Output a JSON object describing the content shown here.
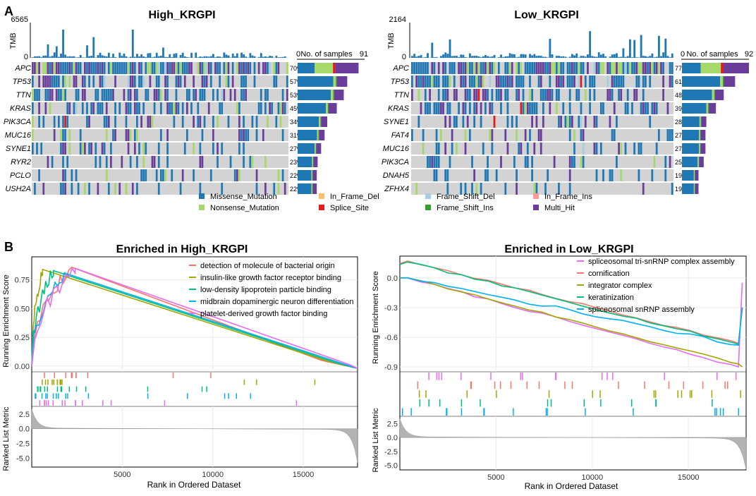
{
  "panel_a_label": "A",
  "panel_b_label": "B",
  "colors": {
    "missense": "#1f78b4",
    "nonsense": "#a6d96a",
    "in_frame_del": "#fdbf6f",
    "splice": "#e31a1c",
    "frame_shift_del": "#a6cee3",
    "frame_shift_ins": "#33a02c",
    "in_frame_ins": "#fb9a99",
    "multi_hit": "#6a3d9a",
    "grid": "#d3d3d3",
    "gsea1": "#f8766d",
    "gsea2": "#a3a500",
    "gsea3": "#00bf7d",
    "gsea4": "#00b0f6",
    "gsea5": "#e76bf3"
  },
  "legend": {
    "items": [
      {
        "label": "Missense_Mutation",
        "key": "missense"
      },
      {
        "label": "Nonsense_Mutation",
        "key": "nonsense"
      },
      {
        "label": "In_Frame_Del",
        "key": "in_frame_del"
      },
      {
        "label": "Splice_Site",
        "key": "splice"
      },
      {
        "label": "Frame_Shift_Del",
        "key": "frame_shift_del"
      },
      {
        "label": "Frame_Shift_Ins",
        "key": "frame_shift_ins"
      },
      {
        "label": "In_Frame_Ins",
        "key": "in_frame_ins"
      },
      {
        "label": "Multi_Hit",
        "key": "multi_hit"
      }
    ]
  },
  "chart_data": [
    {
      "type": "oncoplot",
      "title": "High_KRGPI",
      "tmb_label": "TMB",
      "tmb_max": "6565",
      "tmb_min": "0",
      "samples_axis_label": "No. of samples",
      "samples_axis_min": "0",
      "samples_axis_max": "91",
      "samples_max": 91,
      "genes": [
        "APC",
        "TP53",
        "TTN",
        "KRAS",
        "PIK3CA",
        "MUC16",
        "SYNE1",
        "RYR2",
        "PCLO",
        "USH2A"
      ],
      "percents": [
        "70%",
        "57%",
        "53%",
        "45%",
        "34%",
        "31%",
        "27%",
        "23%",
        "22%",
        "22%"
      ],
      "pct_values": [
        70,
        57,
        53,
        45,
        34,
        31,
        27,
        23,
        22,
        22
      ]
    },
    {
      "type": "oncoplot",
      "title": "Low_KRGPI",
      "tmb_label": "TMB",
      "tmb_max": "2164",
      "tmb_min": "0",
      "samples_axis_label": "No. of samples",
      "samples_axis_min": "0",
      "samples_axis_max": "92",
      "samples_max": 92,
      "genes": [
        "APC",
        "TP53",
        "TTN",
        "KRAS",
        "SYNE1",
        "FAT4",
        "MUC16",
        "PIK3CA",
        "DNAH5",
        "ZFHX4"
      ],
      "percents": [
        "77%",
        "61%",
        "48%",
        "39%",
        "28%",
        "27%",
        "27%",
        "25%",
        "19%",
        "19%"
      ],
      "pct_values": [
        77,
        61,
        48,
        39,
        28,
        27,
        27,
        25,
        19,
        19
      ]
    },
    {
      "type": "line",
      "title": "Enriched in High_KRGPI",
      "ylabel": "Running Enrichment Score",
      "ylabel2": "Ranked List Metric",
      "xlabel": "Rank in Ordered Dataset",
      "yticks": [
        "0.00",
        "0.25",
        "0.50",
        "0.75"
      ],
      "ytick_values": [
        0,
        0.25,
        0.5,
        0.75
      ],
      "ylim": [
        -0.05,
        0.95
      ],
      "metric_ticks": [
        "2.5",
        "0.0",
        "-2.5",
        "-5.0"
      ],
      "metric_values": [
        2.5,
        0,
        -2.5,
        -5
      ],
      "metric_lim": [
        -6.5,
        3.8
      ],
      "xticks": [
        "5000",
        "10000",
        "15000"
      ],
      "xtick_values": [
        5000,
        10000,
        15000
      ],
      "xlim": [
        0,
        18000
      ],
      "series": [
        {
          "name": "detection of molecule of bacterial origin",
          "ckey": "gsea1",
          "peak": 2200,
          "es": 0.86
        },
        {
          "name": "insulin-like growth factor receptor binding",
          "ckey": "gsea2",
          "peak": 600,
          "es": 0.84
        },
        {
          "name": "low-density lipoprotein particle binding",
          "ckey": "gsea3",
          "peak": 1200,
          "es": 0.83
        },
        {
          "name": "midbrain dopaminergic neuron differentiation",
          "ckey": "gsea4",
          "peak": 1800,
          "es": 0.81
        },
        {
          "name": "platelet-derived growth factor binding",
          "ckey": "gsea5",
          "peak": 2400,
          "es": 0.85
        }
      ]
    },
    {
      "type": "line",
      "title": "Enriched in Low_KRGPI",
      "ylabel": "Running Enrichment Score",
      "ylabel2": "Ranked List Metric",
      "xlabel": "Rank in Ordered Dataset",
      "yticks": [
        "0.0",
        "-0.3",
        "-0.6",
        "-0.9"
      ],
      "ytick_values": [
        0,
        -0.3,
        -0.6,
        -0.9
      ],
      "ylim": [
        -0.95,
        0.22
      ],
      "metric_ticks": [
        "2.5",
        "0.0",
        "-2.5",
        "-5.0"
      ],
      "metric_values": [
        2.5,
        0,
        -2.5,
        -5
      ],
      "metric_lim": [
        -5.8,
        3.8
      ],
      "xticks": [
        "5000",
        "10000",
        "15000"
      ],
      "xtick_values": [
        5000,
        10000,
        15000
      ],
      "xlim": [
        0,
        18000
      ],
      "series": [
        {
          "name": "spliceosomal tri-snRNP complex assembly",
          "ckey": "gsea5",
          "start": 0.0,
          "mid": -0.55,
          "end": -0.88
        },
        {
          "name": "cornification",
          "ckey": "gsea1",
          "start": 0.17,
          "mid": -0.28,
          "end": -0.64
        },
        {
          "name": "integrator complex",
          "ckey": "gsea2",
          "start": 0.0,
          "mid": -0.5,
          "end": -0.85
        },
        {
          "name": "keratinization",
          "ckey": "gsea3",
          "start": 0.16,
          "mid": -0.28,
          "end": -0.65
        },
        {
          "name": "spliceosomal snRNP assembly",
          "ckey": "gsea4",
          "start": 0.0,
          "mid": -0.45,
          "end": -0.66
        }
      ]
    }
  ]
}
